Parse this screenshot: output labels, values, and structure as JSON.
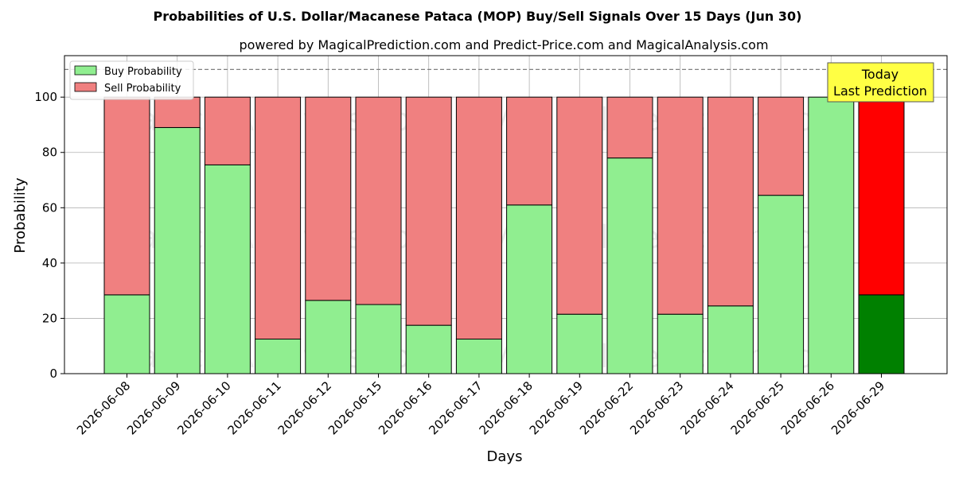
{
  "chart_data": {
    "type": "bar",
    "stacked": true,
    "title": "Probabilities of U.S. Dollar/Macanese Pataca (MOP) Buy/Sell Signals Over 15 Days (Jun 30)",
    "subtitle": "powered by MagicalPrediction.com and Predict-Price.com and MagicalAnalysis.com",
    "xlabel": "Days",
    "ylabel": "Probability",
    "ylim": [
      0,
      115
    ],
    "yticks": [
      0,
      20,
      40,
      60,
      80,
      100
    ],
    "reference_line": 110,
    "grid": true,
    "legend_position": "top-left",
    "categories": [
      "2026-06-08",
      "2026-06-09",
      "2026-06-10",
      "2026-06-11",
      "2026-06-12",
      "2026-06-15",
      "2026-06-16",
      "2026-06-17",
      "2026-06-18",
      "2026-06-19",
      "2026-06-22",
      "2026-06-23",
      "2026-06-24",
      "2026-06-25",
      "2026-06-26",
      "2026-06-29"
    ],
    "series": [
      {
        "name": "Buy Probability",
        "color": "#90ee90",
        "values": [
          28.5,
          89,
          75.5,
          12.5,
          26.5,
          25,
          17.5,
          12.5,
          61,
          21.5,
          78,
          21.5,
          24.5,
          64.5,
          100,
          28.5
        ]
      },
      {
        "name": "Sell Probability",
        "color": "#f08080",
        "values": [
          71.5,
          11,
          24.5,
          87.5,
          73.5,
          75,
          82.5,
          87.5,
          39,
          78.5,
          22,
          78.5,
          75.5,
          35.5,
          0,
          71.5
        ]
      }
    ],
    "highlight": {
      "index": 15,
      "buy_color": "#008000",
      "sell_color": "#ff0000"
    },
    "annotation": {
      "lines": [
        "Today",
        "Last Prediction"
      ],
      "color": "#ffff44"
    },
    "watermarks": [
      "MagicalAnalysis.com",
      "MagicalPrediction.com"
    ]
  }
}
